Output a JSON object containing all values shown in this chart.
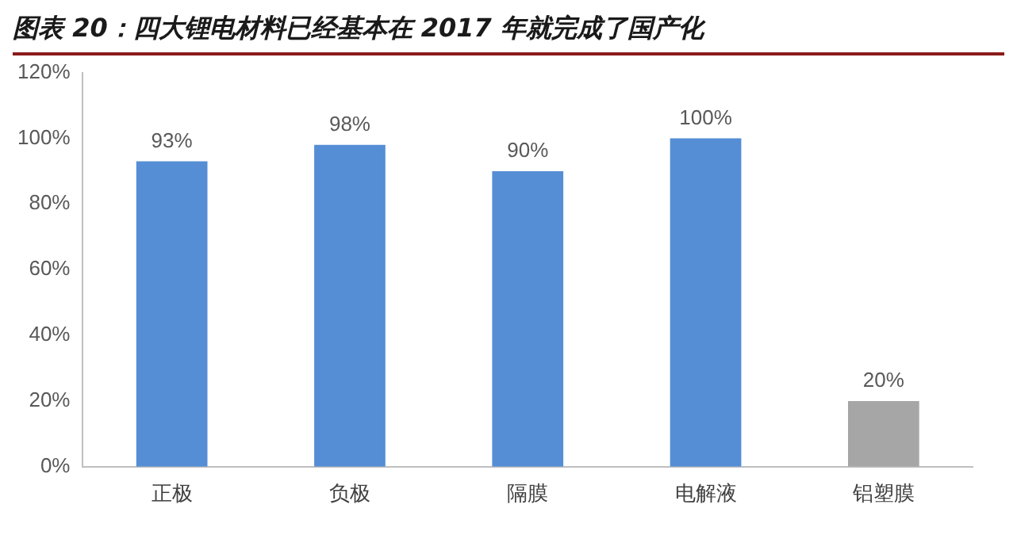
{
  "chart_data": {
    "type": "bar",
    "title": "图表 20：四大锂电材料已经基本在 2017 年就完成了国产化",
    "categories": [
      "正极",
      "负极",
      "隔膜",
      "电解液",
      "铝塑膜"
    ],
    "values": [
      93,
      98,
      90,
      100,
      20
    ],
    "colors": [
      "#558ed5",
      "#558ed5",
      "#558ed5",
      "#558ed5",
      "#a6a6a6"
    ],
    "value_labels": [
      "93%",
      "98%",
      "90%",
      "100%",
      "20%"
    ],
    "ylim": [
      0,
      120
    ],
    "yticks": [
      {
        "value": 0,
        "label": "0%"
      },
      {
        "value": 20,
        "label": "20%"
      },
      {
        "value": 40,
        "label": "40%"
      },
      {
        "value": 60,
        "label": "60%"
      },
      {
        "value": 80,
        "label": "80%"
      },
      {
        "value": 100,
        "label": "100%"
      },
      {
        "value": 120,
        "label": "120%"
      }
    ],
    "grid": false,
    "legend": false
  }
}
